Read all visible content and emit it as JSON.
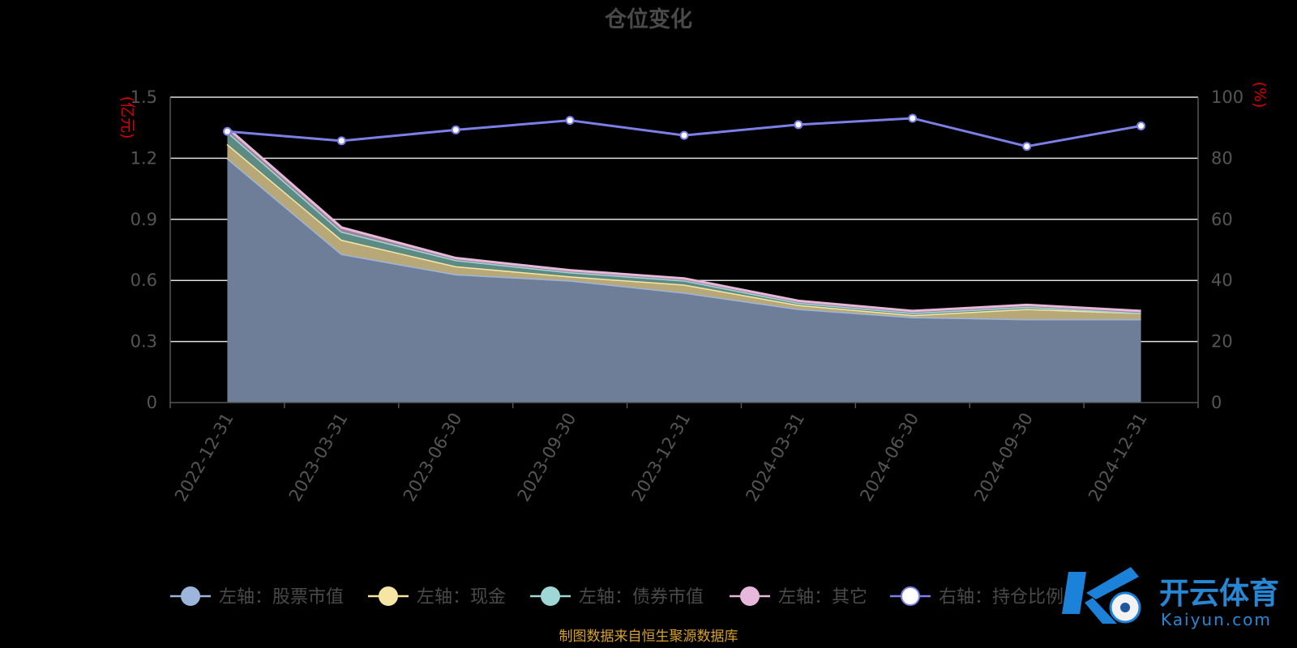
{
  "chart_data": {
    "type": "area",
    "title": "仓位变化",
    "categories": [
      "2022-12-31",
      "2023-03-31",
      "2023-06-30",
      "2023-09-30",
      "2023-12-31",
      "2024-03-31",
      "2024-06-30",
      "2024-09-30",
      "2024-12-31"
    ],
    "left_axis": {
      "unit": "(亿元)",
      "range": [
        0,
        1.5
      ],
      "ticks": [
        "0",
        "0.3",
        "0.6",
        "0.9",
        "1.2",
        "1.5"
      ]
    },
    "right_axis": {
      "unit": "(%)",
      "range": [
        0,
        100
      ],
      "ticks": [
        "0",
        "20",
        "40",
        "60",
        "80",
        "100"
      ]
    },
    "grid": true,
    "legend_position": "bottom",
    "stacked_series": [
      {
        "name": "左轴：股票市值",
        "color": "#9bb5dc",
        "fill": "#6e7e99",
        "values": [
          1.2,
          0.73,
          0.63,
          0.6,
          0.54,
          0.46,
          0.42,
          0.41,
          0.41
        ]
      },
      {
        "name": "左轴：现金",
        "color": "#f5e6a3",
        "fill": "#b8a878",
        "values": [
          0.07,
          0.07,
          0.04,
          0.02,
          0.04,
          0.02,
          0.01,
          0.05,
          0.03
        ]
      },
      {
        "name": "左轴：债券市值",
        "color": "#9fd6d6",
        "fill": "#5e8a84",
        "values": [
          0.06,
          0.04,
          0.03,
          0.02,
          0.02,
          0.01,
          0.01,
          0.01,
          0.0
        ]
      },
      {
        "name": "左轴：其它",
        "color": "#e6b8d9",
        "fill": "#9d8196",
        "values": [
          0.02,
          0.02,
          0.01,
          0.01,
          0.01,
          0.01,
          0.01,
          0.01,
          0.01
        ]
      }
    ],
    "line_series": {
      "name": "右轴：持仓比例",
      "color": "#7b7fe6",
      "values": [
        88.8,
        85.7,
        89.3,
        92.4,
        87.5,
        91.0,
        93.1,
        83.9,
        90.6
      ]
    },
    "source_note": "制图数据来自恒生聚源数据库"
  },
  "watermark": {
    "cn": "开云体育",
    "en": "Kaiyun.com"
  }
}
